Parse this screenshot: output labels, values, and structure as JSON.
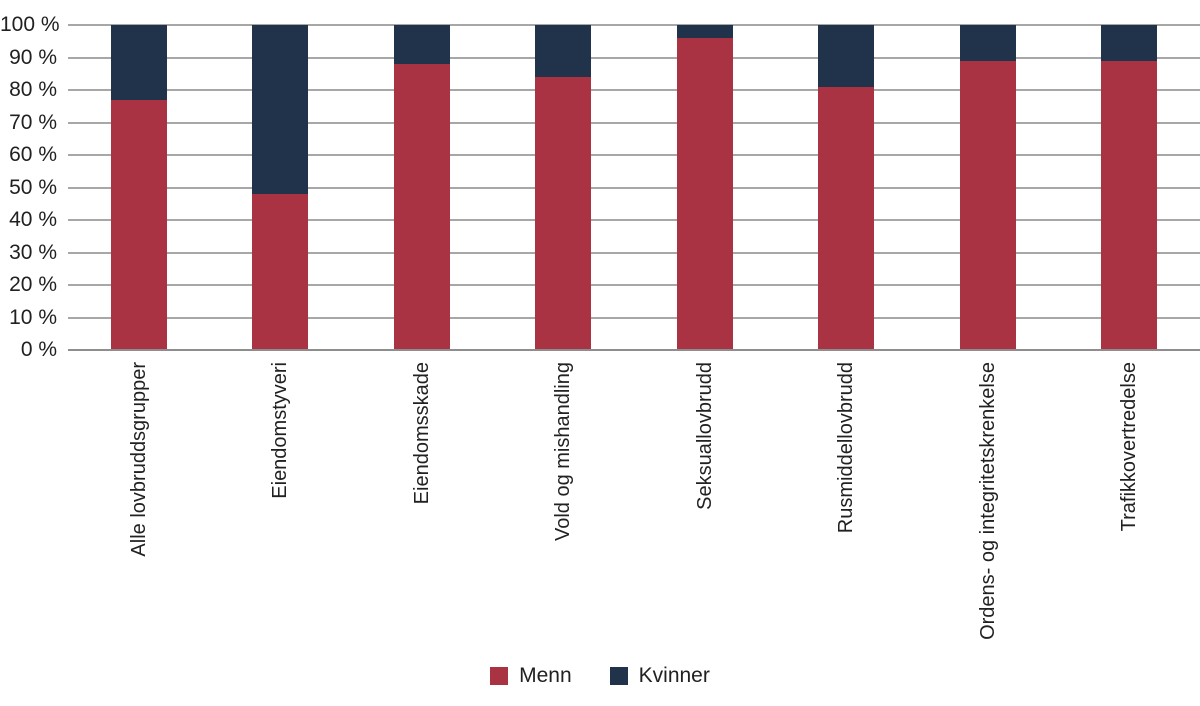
{
  "figure": {
    "background": "#ffffff"
  },
  "chart_data": {
    "type": "bar",
    "stacked": true,
    "percent_stacked": true,
    "title": "",
    "xlabel": "",
    "ylabel": "",
    "categories": [
      "Alle lovbruddsgrupper",
      "Eiendomstyveri",
      "Eiendomsskade",
      "Vold og mishandling",
      "Seksuallovbrudd",
      "Rusmiddellovbrudd",
      "Ordens- og integritetskrenkelse",
      "Trafikkovertredelse"
    ],
    "series": [
      {
        "name": "Menn",
        "color": "#A93243",
        "values": [
          77,
          48,
          88,
          84,
          96,
          81,
          89,
          89
        ]
      },
      {
        "name": "Kvinner",
        "color": "#20334A",
        "values": [
          23,
          52,
          12,
          16,
          4,
          19,
          11,
          11
        ]
      }
    ],
    "ylim": [
      0,
      100
    ],
    "ytick_step": 10,
    "ytick_suffix": " %",
    "grid": "horizontal",
    "gridline_color": "#A7A7A7",
    "axis_line_color": "#8E8E8E",
    "text_color": "#212121",
    "legend_position": "bottom-center"
  }
}
